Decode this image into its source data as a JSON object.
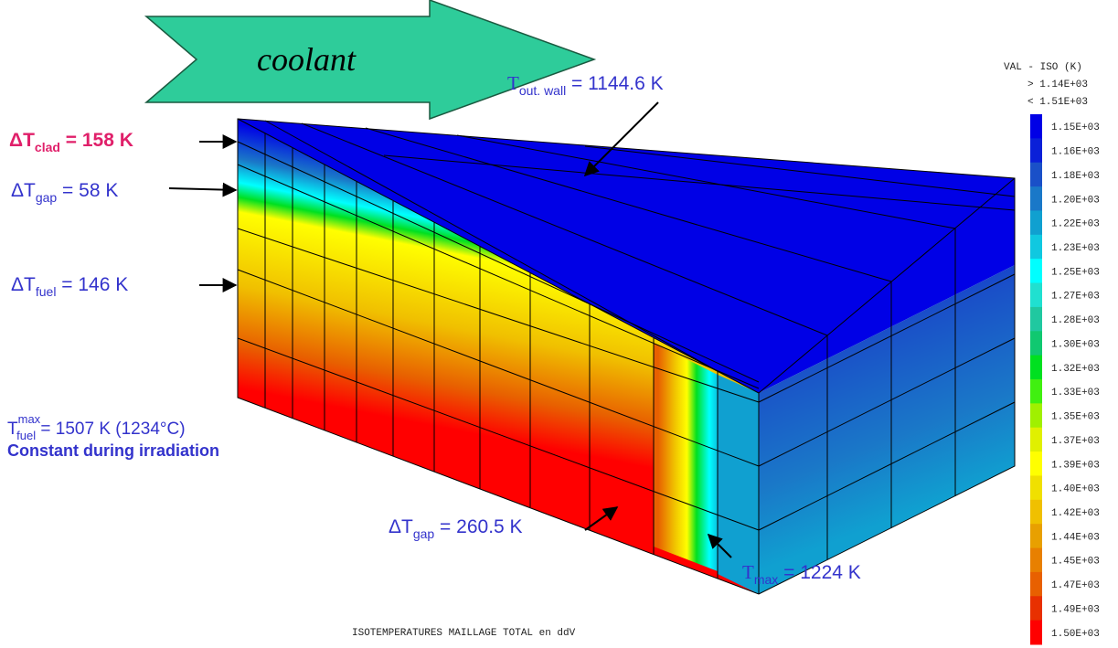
{
  "arrow_label": "coolant",
  "annotations": {
    "dt_clad": {
      "symbol": "ΔT",
      "sub": "clad",
      "rest": " = 158 K"
    },
    "dt_gap_top": {
      "symbol": "ΔT",
      "sub": "gap",
      "rest": " = 58 K"
    },
    "dt_fuel": {
      "symbol": "ΔT",
      "sub": "fuel",
      "rest": " = 146 K"
    },
    "t_max_fuel": {
      "symbol": "T",
      "sup": "max",
      "sub": "fuel",
      "rest": " = 1507 K (1234°C)",
      "note": "Constant during irradiation"
    },
    "t_out_wall": {
      "symbol": "T",
      "sub": "out. wall",
      "rest": " = 1144.6 K"
    },
    "dt_gap_bottom": {
      "symbol": "ΔT",
      "sub": "gap",
      "rest": " = 260.5 K"
    },
    "t_max": {
      "symbol": "T",
      "sub": "max",
      "rest": " = 1224 K"
    }
  },
  "legend": {
    "title": "VAL - ISO (K)",
    "max_label": "> 1.14E+03",
    "min_label": "< 1.51E+03",
    "entries": [
      {
        "label": "1.15E+03",
        "color": "#0000e6"
      },
      {
        "label": "1.16E+03",
        "color": "#0a20d8"
      },
      {
        "label": "1.18E+03",
        "color": "#1a50c8"
      },
      {
        "label": "1.20E+03",
        "color": "#1a78c8"
      },
      {
        "label": "1.22E+03",
        "color": "#10a0d0"
      },
      {
        "label": "1.23E+03",
        "color": "#10c8e0"
      },
      {
        "label": "1.25E+03",
        "color": "#00ffff"
      },
      {
        "label": "1.27E+03",
        "color": "#20e0d0"
      },
      {
        "label": "1.28E+03",
        "color": "#20c8a0"
      },
      {
        "label": "1.30E+03",
        "color": "#10c870"
      },
      {
        "label": "1.32E+03",
        "color": "#00e020"
      },
      {
        "label": "1.33E+03",
        "color": "#40f010"
      },
      {
        "label": "1.35E+03",
        "color": "#a0f000"
      },
      {
        "label": "1.37E+03",
        "color": "#e0f000"
      },
      {
        "label": "1.39E+03",
        "color": "#ffff00"
      },
      {
        "label": "1.40E+03",
        "color": "#f0e000"
      },
      {
        "label": "1.42E+03",
        "color": "#f0c000"
      },
      {
        "label": "1.44E+03",
        "color": "#e8a000"
      },
      {
        "label": "1.45E+03",
        "color": "#e88000"
      },
      {
        "label": "1.47E+03",
        "color": "#e86000"
      },
      {
        "label": "1.49E+03",
        "color": "#e83000"
      },
      {
        "label": "1.50E+03",
        "color": "#ff0000"
      }
    ]
  },
  "caption": "ISOTEMPERATURES MAILLAGE TOTAL en ddV"
}
